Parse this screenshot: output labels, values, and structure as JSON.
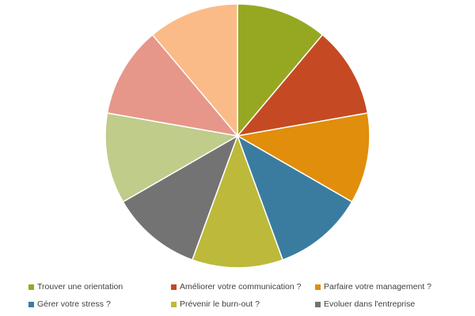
{
  "chart_data": {
    "type": "pie",
    "title": "",
    "categories": [
      "Trouver une orientation",
      "Améliorer votre communication ?",
      "Parfaire votre management ?",
      "Gérer votre stress ?",
      "Prévenir le burn-out ?",
      "Evoluer dans l'entreprise",
      "",
      "",
      ""
    ],
    "values": [
      1,
      1,
      1,
      1,
      1,
      1,
      1,
      1,
      1
    ],
    "colors": [
      "#96a822",
      "#c54a23",
      "#e08e0b",
      "#3a7ca0",
      "#bdb93b",
      "#737373",
      "#bfcc8a",
      "#e7968a",
      "#fbbb88"
    ],
    "legend": {
      "position": "bottom",
      "entries": [
        {
          "label": "Trouver une orientation",
          "color": "#96a822"
        },
        {
          "label": "Améliorer votre communication ?",
          "color": "#c54a23"
        },
        {
          "label": "Parfaire votre management ?",
          "color": "#e08e0b"
        },
        {
          "label": "Gérer votre stress ?",
          "color": "#3a7ca0"
        },
        {
          "label": "Prévenir le burn-out ?",
          "color": "#bdb93b"
        },
        {
          "label": "Evoluer dans l'entreprise",
          "color": "#737373"
        }
      ]
    }
  }
}
